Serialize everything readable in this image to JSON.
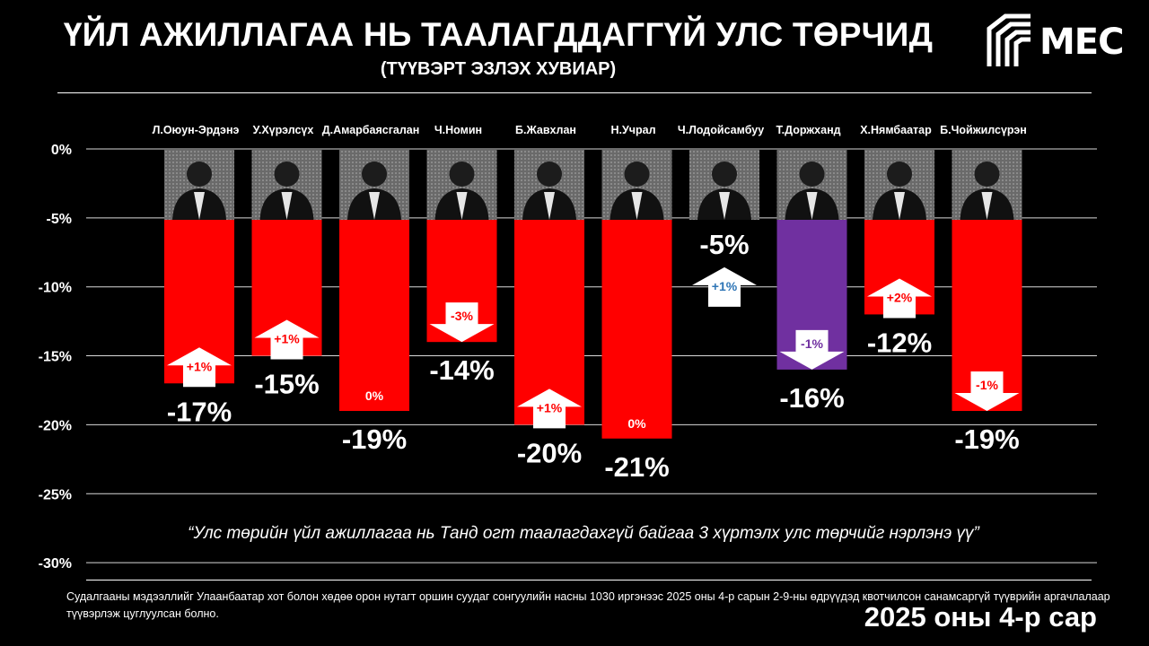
{
  "header": {
    "title": "ҮЙЛ АЖИЛЛАГАА НЬ ТААЛАГДДАГГҮЙ УЛС ТӨРЧИД",
    "subtitle": "(ТҮҮВЭРТ ЭЗЛЭХ ХУВИАР)"
  },
  "logo": {
    "text": "MEC",
    "icon": "mec-logo-icon"
  },
  "question": "“Улс төрийн үйл ажиллагаа нь Танд огт таалагдахгүй байгаа 3 хүртэлх улс төрчийг нэрлэнэ үү”",
  "footnote": "Судалгааны мэдээллийг Улаанбаатар хот болон хөдөө орон нутагт оршин суудаг сонгуулийн насны 1030 иргэнээс 2025 оны 4-р сарын 2-9-ны өдрүүдэд квотчилсон санамсаргүй түүврийн аргачлалаар түүвэрлэж цуглуулсан болно.",
  "date_label": "2025 оны 4-р сар",
  "colors": {
    "bar": "#ff0000",
    "highlight": "#7030a0",
    "background": "#000000",
    "change_label_blue": "#2e75b6"
  },
  "chart_data": {
    "type": "bar",
    "title": "ҮЙЛ АЖИЛЛАГАА НЬ ТААЛАГДДАГГҮЙ УЛС ТӨРЧИД",
    "subtitle": "(ТҮҮВЭРТ ЭЗЛЭХ ХУВИАР)",
    "categories": [
      "Л.Оюун-Эрдэнэ",
      "У.Хүрэлсүх",
      "Д.Амарбаясгалан",
      "Ч.Номин",
      "Б.Жавхлан",
      "Н.Учрал",
      "Ч.Лодойсамбуу",
      "Т.Доржханд",
      "Х.Нямбаатар",
      "Б.Чойжилсүрэн"
    ],
    "values": [
      -17,
      -15,
      -19,
      -14,
      -20,
      -21,
      -5,
      -16,
      -12,
      -19
    ],
    "value_labels": [
      "-17%",
      "-15%",
      "-19%",
      "-14%",
      "-20%",
      "-21%",
      "-5%",
      "-16%",
      "-12%",
      "-19%"
    ],
    "changes": [
      1,
      1,
      0,
      -3,
      1,
      0,
      1,
      -1,
      2,
      -1
    ],
    "change_labels": [
      "+1%",
      "+1%",
      "0%",
      "-3%",
      "+1%",
      "0%",
      "+1%",
      "-1%",
      "+2%",
      "-1%"
    ],
    "highlight_index": 7,
    "ylim": [
      -30,
      0
    ],
    "yticks": [
      0,
      -5,
      -10,
      -15,
      -20,
      -25,
      -30
    ],
    "ytick_labels": [
      "0%",
      "-5%",
      "-10%",
      "-15%",
      "-20%",
      "-25%",
      "-30%"
    ],
    "grid": true,
    "legend": "none",
    "bars_start_at": -5
  }
}
